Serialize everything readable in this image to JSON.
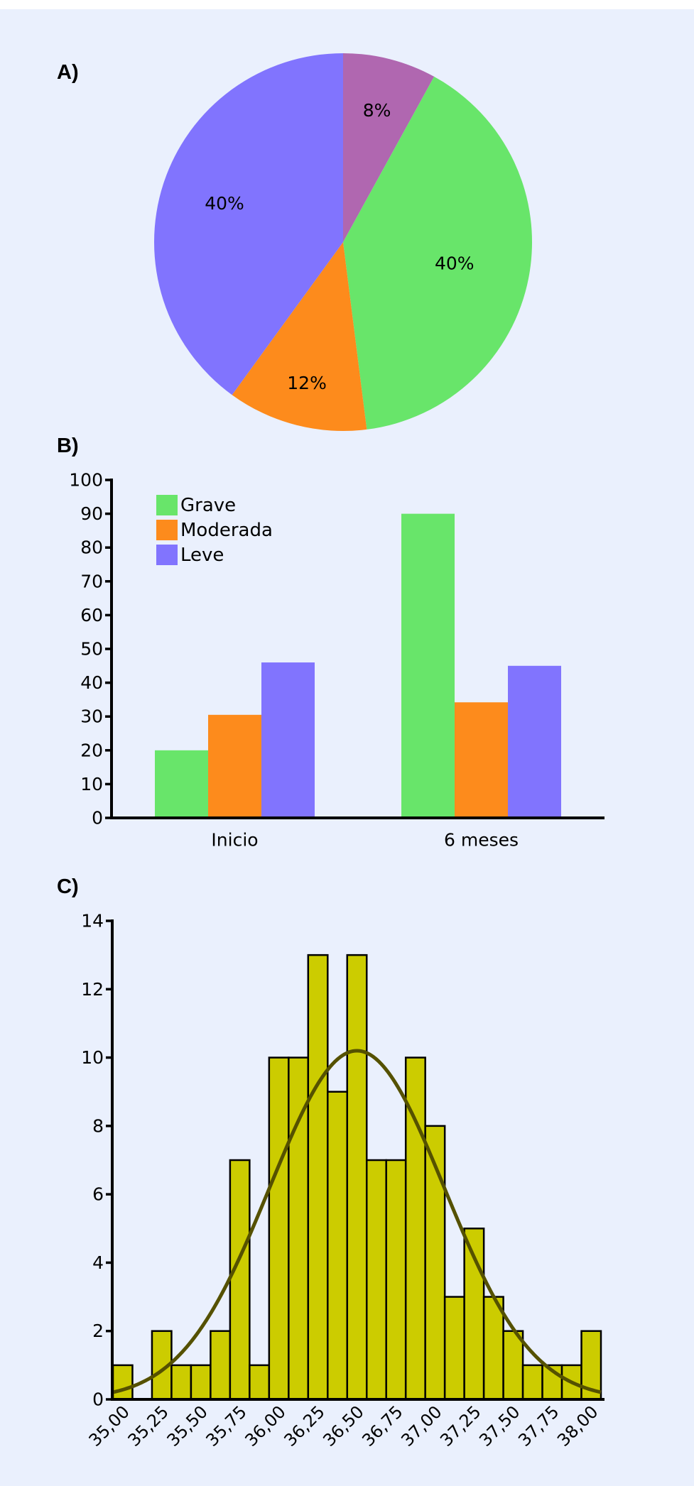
{
  "chart_data": [
    {
      "panel": "A)",
      "type": "pie",
      "start": "top",
      "direction": "clockwise",
      "slices": [
        {
          "label": "8%",
          "value": 8,
          "color": "#b067b0"
        },
        {
          "label": "40%",
          "value": 40,
          "color": "#68e56a"
        },
        {
          "label": "12%",
          "value": 12,
          "color": "#fd8b1c"
        },
        {
          "label": "40%",
          "value": 40,
          "color": "#8174fe"
        }
      ]
    },
    {
      "panel": "B)",
      "type": "bar",
      "title": "",
      "xlabel": "",
      "ylabel": "",
      "categories": [
        "Inicio",
        "6 meses"
      ],
      "series": [
        {
          "name": "Grave",
          "color": "#68e56a",
          "values": [
            20,
            90
          ]
        },
        {
          "name": "Moderada",
          "color": "#fd8b1c",
          "values": [
            30.5,
            34.2
          ]
        },
        {
          "name": "Leve",
          "color": "#8174fe",
          "values": [
            46,
            45
          ]
        }
      ],
      "ylim": [
        0,
        100
      ],
      "yticks": [
        0,
        10,
        20,
        30,
        40,
        50,
        60,
        70,
        80,
        90,
        100
      ],
      "legend": "top-left",
      "grid": false
    },
    {
      "panel": "C)",
      "type": "bar",
      "subtype": "histogram",
      "title": "",
      "xlabel": "",
      "ylabel": "",
      "bin_width": 0.125,
      "first_bin_center": 35.0,
      "counts": [
        1,
        0,
        2,
        1,
        1,
        2,
        7,
        1,
        10,
        10,
        13,
        9,
        13,
        7,
        7,
        10,
        8,
        3,
        5,
        3,
        2,
        1,
        1,
        1,
        2
      ],
      "xlim": [
        34.9375,
        38.0625
      ],
      "xtick_values": [
        35.0,
        35.25,
        35.5,
        35.75,
        36.0,
        36.25,
        36.5,
        36.75,
        37.0,
        37.25,
        37.5,
        37.75,
        38.0
      ],
      "xtick_labels": [
        "35,00",
        "35,25",
        "35,50",
        "35,75",
        "36,00",
        "36,25",
        "36,50",
        "36,75",
        "37,00",
        "37,25",
        "37,50",
        "37,75",
        "38,00"
      ],
      "ylim": [
        0,
        14
      ],
      "yticks": [
        0,
        2,
        4,
        6,
        8,
        10,
        12,
        14
      ],
      "bar_color": "#cccc00",
      "fit": {
        "type": "normal",
        "mean": 36.5,
        "sd": 0.56,
        "peak": 10.2,
        "color": "#555100"
      },
      "grid": false
    }
  ]
}
